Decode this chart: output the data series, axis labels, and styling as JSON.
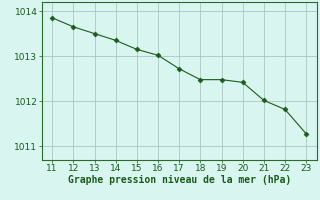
{
  "x": [
    11,
    12,
    13,
    14,
    15,
    16,
    17,
    18,
    19,
    20,
    21,
    22,
    23
  ],
  "y": [
    1013.85,
    1013.65,
    1013.5,
    1013.35,
    1013.15,
    1013.02,
    1012.72,
    1012.48,
    1012.48,
    1012.42,
    1012.02,
    1011.82,
    1011.28
  ],
  "line_color": "#1a5c1a",
  "marker": "D",
  "marker_size": 2.5,
  "background_color": "#d8f5f0",
  "grid_color": "#a8c8c0",
  "xlabel": "Graphe pression niveau de la mer (hPa)",
  "xlabel_color": "#1a5c1a",
  "xlabel_fontsize": 7,
  "tick_color": "#1a5c1a",
  "tick_fontsize": 6.5,
  "xlim": [
    10.5,
    23.5
  ],
  "ylim": [
    1010.7,
    1014.2
  ],
  "yticks": [
    1011,
    1012,
    1013,
    1014
  ],
  "xticks": [
    11,
    12,
    13,
    14,
    15,
    16,
    17,
    18,
    19,
    20,
    21,
    22,
    23
  ]
}
